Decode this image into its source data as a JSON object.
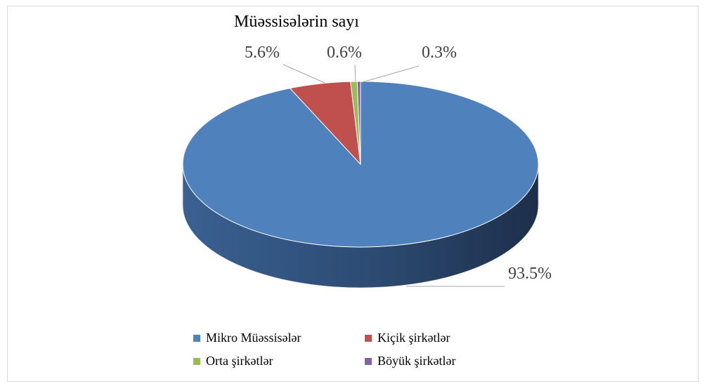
{
  "chart_data": {
    "type": "pie",
    "title": "Müəssisələrin sayı",
    "slices": [
      {
        "name": "Mikro Müəssisələr",
        "value": 93.5,
        "label": "93.5%",
        "color": "#4F81BD",
        "side_color": "#3B6494"
      },
      {
        "name": "Kiçik şirkətlər",
        "value": 5.6,
        "label": "5.6%",
        "color": "#C0504D",
        "side_color": "#8E3B39"
      },
      {
        "name": "Orta şirkətlər",
        "value": 0.6,
        "label": "0.6%",
        "color": "#9BBB59",
        "side_color": "#728A41"
      },
      {
        "name": "Böyük şirkətlər",
        "value": 0.3,
        "label": "0.3%",
        "color": "#8064A2",
        "side_color": "#5E4A78"
      }
    ],
    "legend_position": "bottom"
  }
}
